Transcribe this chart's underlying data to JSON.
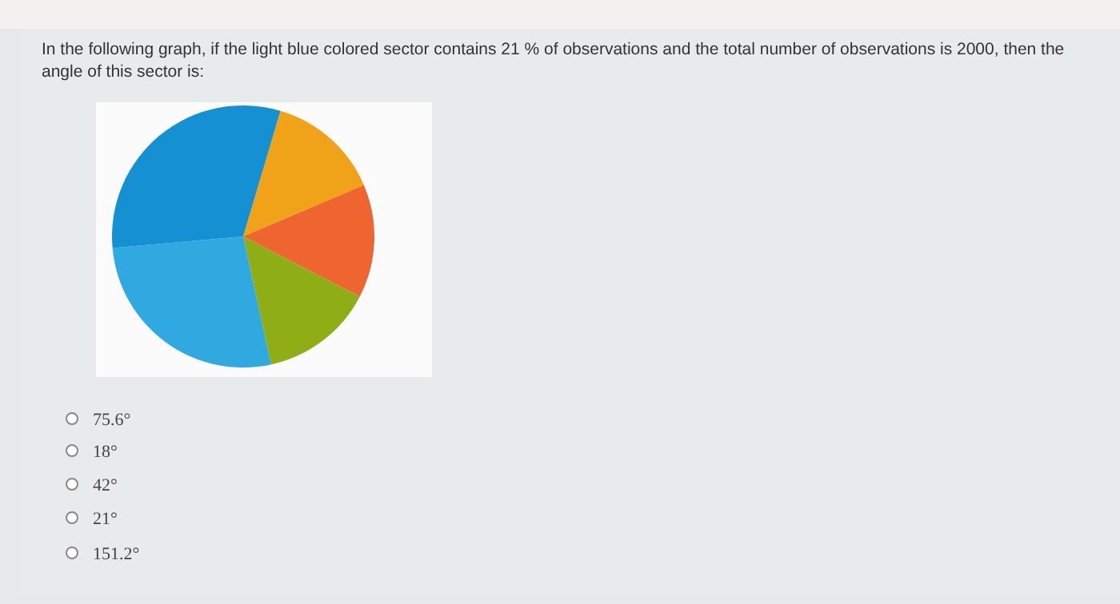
{
  "chart_data": {
    "type": "pie",
    "title": "In the following graph, if the light blue colored sector contains 21 % of observations and the total number of observations is 2000, then the angle of this sector is:",
    "categories": [
      null,
      null,
      null,
      null,
      null
    ],
    "values": [
      14,
      14,
      14,
      27,
      31
    ],
    "colors": [
      "#f0a318",
      "#ef6530",
      "#8fad15",
      "#2fa9e0",
      "#1490d3"
    ],
    "annotations": [
      "75.6°",
      "18°",
      "42°",
      "21°",
      "151.2°"
    ]
  }
}
